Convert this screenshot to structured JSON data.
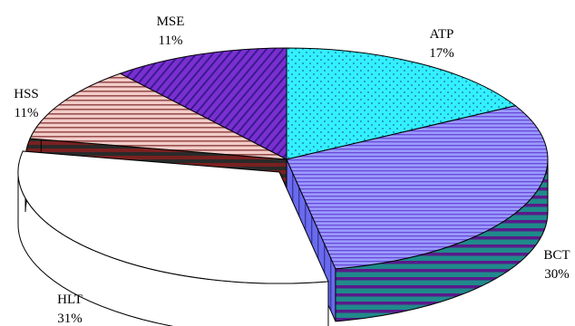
{
  "chart_data": {
    "type": "pie",
    "title": "",
    "style": "3d-exploded",
    "slices": [
      {
        "label": "ATP",
        "value_label": "17%",
        "value": 17,
        "color": "#33f0ff",
        "pattern": "dots"
      },
      {
        "label": "BCT",
        "value_label": "30%",
        "value": 30,
        "color": "#9999ff",
        "pattern": "horizontal-lines"
      },
      {
        "label": "HLT",
        "value_label": "31%",
        "value": 31,
        "color": "#ffffff",
        "pattern": "none"
      },
      {
        "label": "HSS",
        "value_label": "11%",
        "value": 11,
        "color": "#f0c0b8",
        "pattern": "horizontal-lines-dark"
      },
      {
        "label": "MSE",
        "value_label": "11%",
        "value": 11,
        "color": "#7a2fd0",
        "pattern": "diagonal-lines"
      }
    ],
    "legend": "none"
  }
}
